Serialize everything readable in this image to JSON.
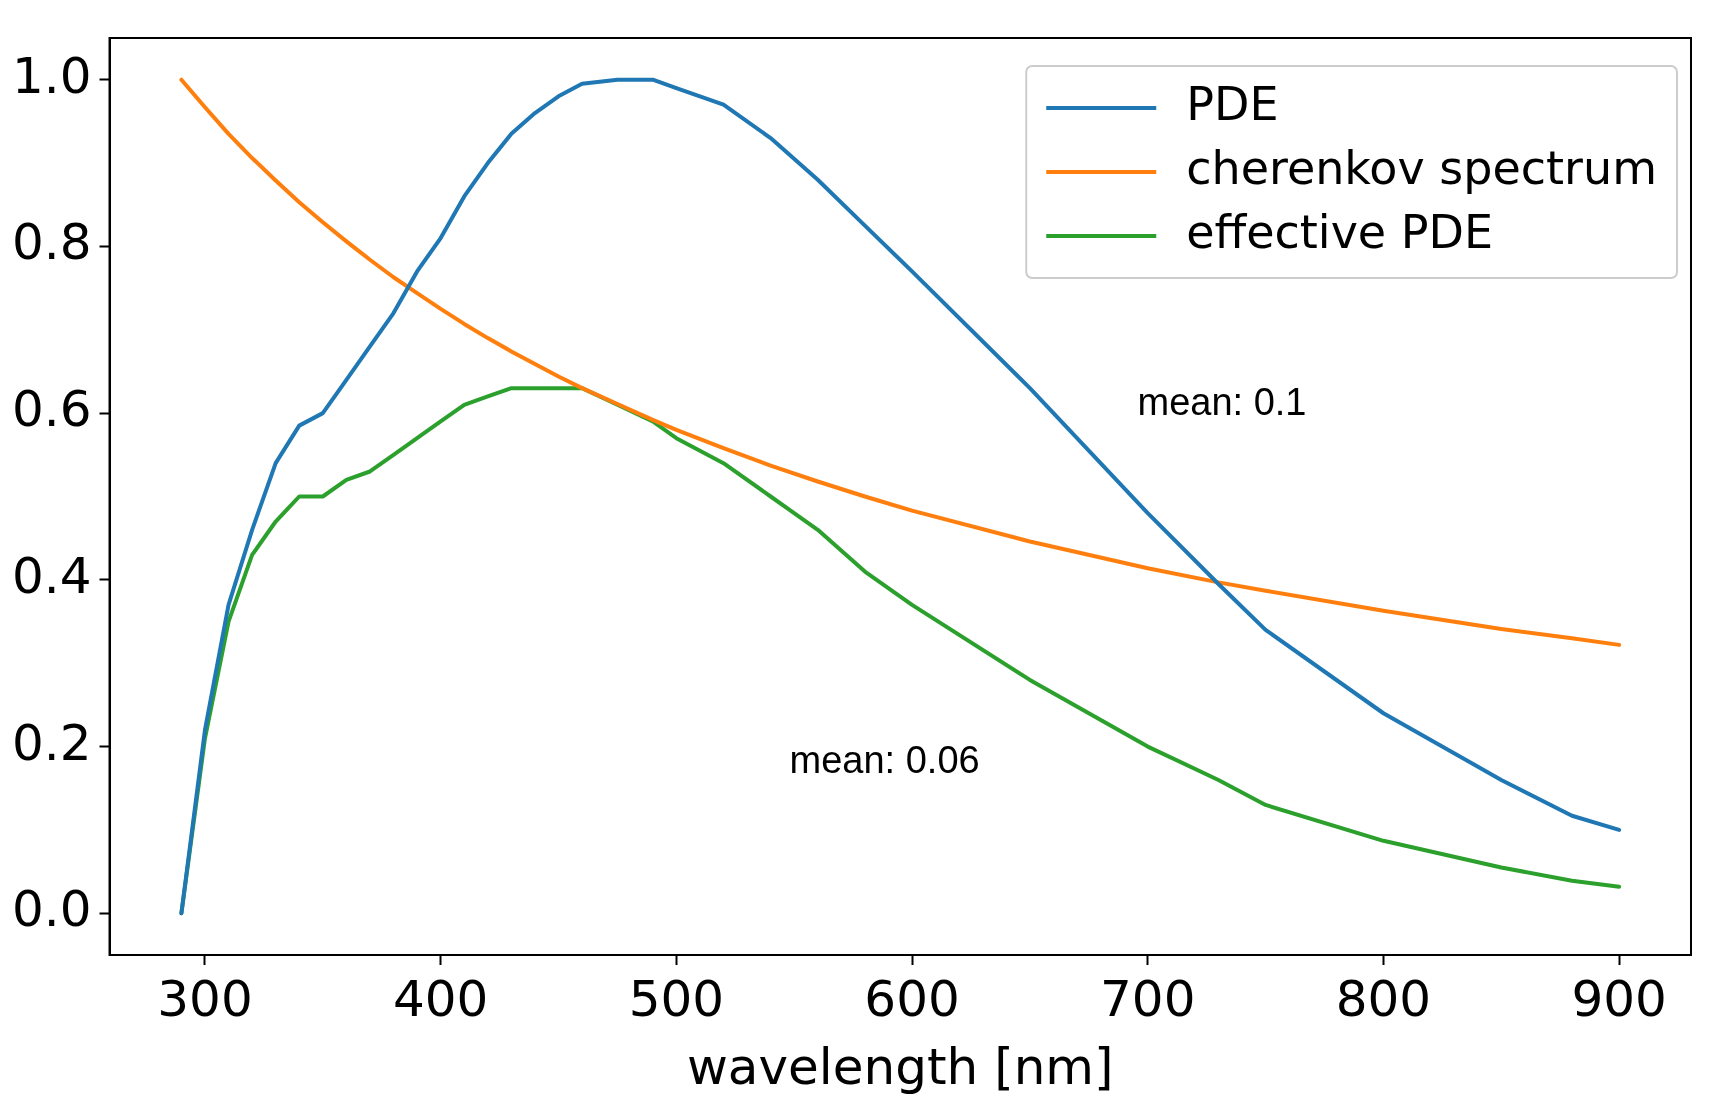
{
  "chart_data": {
    "type": "line",
    "xlabel": "wavelength [nm]",
    "x": [
      290,
      300,
      310,
      320,
      330,
      340,
      350,
      360,
      370,
      380,
      390,
      400,
      410,
      420,
      430,
      440,
      450,
      460,
      475,
      490,
      500,
      520,
      540,
      560,
      580,
      600,
      650,
      700,
      730,
      750,
      800,
      850,
      880,
      900
    ],
    "series": [
      {
        "name": "PDE",
        "color": "#1f77b4",
        "values": [
          0,
          0.22,
          0.37,
          0.46,
          0.54,
          0.585,
          0.6,
          0.64,
          0.68,
          0.72,
          0.77,
          0.81,
          0.86,
          0.9,
          0.935,
          0.96,
          0.98,
          0.995,
          1.0,
          1.0,
          0.99,
          0.97,
          0.93,
          0.88,
          0.825,
          0.77,
          0.63,
          0.48,
          0.395,
          0.34,
          0.24,
          0.16,
          0.117,
          0.1
        ]
      },
      {
        "name": "cherenkov spectrum",
        "color": "#ff7f0e",
        "values": [
          1.0,
          0.967,
          0.935,
          0.906,
          0.879,
          0.853,
          0.829,
          0.806,
          0.784,
          0.763,
          0.744,
          0.725,
          0.707,
          0.69,
          0.674,
          0.659,
          0.644,
          0.63,
          0.611,
          0.592,
          0.58,
          0.558,
          0.537,
          0.518,
          0.5,
          0.483,
          0.446,
          0.414,
          0.397,
          0.387,
          0.363,
          0.341,
          0.33,
          0.322
        ]
      },
      {
        "name": "effective PDE",
        "color": "#2ca02c",
        "values": [
          0,
          0.21,
          0.35,
          0.43,
          0.47,
          0.5,
          0.5,
          0.52,
          0.53,
          0.55,
          0.57,
          0.59,
          0.61,
          0.62,
          0.63,
          0.63,
          0.63,
          0.63,
          0.61,
          0.59,
          0.57,
          0.54,
          0.5,
          0.46,
          0.41,
          0.37,
          0.28,
          0.2,
          0.16,
          0.13,
          0.087,
          0.055,
          0.039,
          0.032
        ]
      }
    ],
    "annotations": [
      "mean: 0.1",
      "mean: 0.06"
    ],
    "xlim": [
      259.5,
      930.5
    ],
    "xticks": [
      300,
      400,
      500,
      600,
      700,
      800,
      900
    ],
    "ylim": [
      -0.05,
      1.05
    ],
    "yticks": [
      {
        "value": 0,
        "label": "0.0"
      },
      {
        "value": 0.2,
        "label": "0.2"
      },
      {
        "value": 0.4,
        "label": "0.4"
      },
      {
        "value": 0.6,
        "label": "0.6"
      },
      {
        "value": 0.8,
        "label": "0.8"
      },
      {
        "value": 1,
        "label": "1.0"
      }
    ],
    "grid": false,
    "legend": "top right",
    "marker": "none",
    "line_style": "solid"
  }
}
